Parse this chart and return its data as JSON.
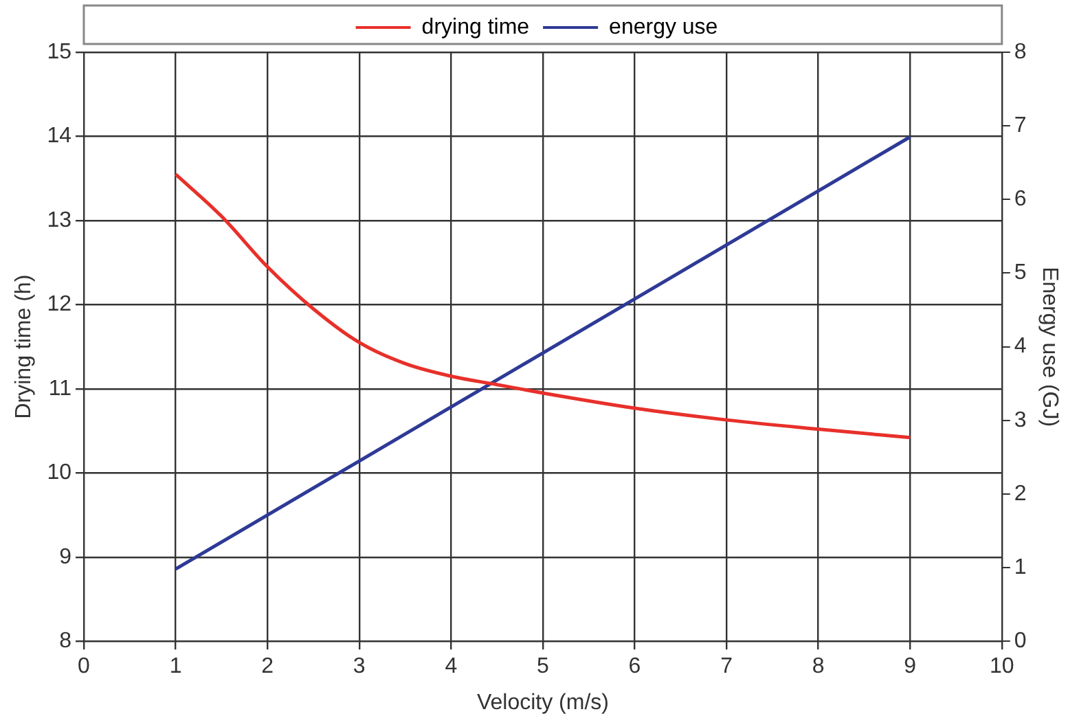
{
  "chart_data": {
    "type": "line",
    "xlabel": "Velocity (m/s)",
    "ylabel": "Drying time (h)",
    "y2label": "Energy use (GJ)",
    "x": [
      1,
      1.5,
      2,
      2.5,
      3,
      3.5,
      4,
      4.5,
      5,
      6,
      7,
      8,
      9
    ],
    "series": [
      {
        "name": "drying time",
        "color": "#e8302a",
        "values": [
          13.55,
          13.05,
          12.45,
          11.95,
          11.55,
          11.3,
          11.15,
          11.05,
          10.95,
          10.77,
          10.63,
          10.52,
          10.42
        ]
      },
      {
        "name": "energy use",
        "color": "#2e3a96",
        "axis": "y2",
        "x": [
          1,
          9
        ],
        "values": [
          0.98,
          6.85
        ]
      }
    ],
    "xlim": [
      0,
      10
    ],
    "xticks": [
      0,
      1,
      2,
      3,
      4,
      5,
      6,
      7,
      8,
      9,
      10
    ],
    "ylim": [
      8,
      15
    ],
    "yticks": [
      8,
      9,
      10,
      11,
      12,
      13,
      14,
      15
    ],
    "y2lim": [
      0,
      8
    ],
    "y2ticks": [
      0,
      1,
      2,
      3,
      4,
      5,
      6,
      7,
      8
    ],
    "grid": true,
    "legend": "top",
    "marker": "none",
    "line_style": "solid"
  }
}
